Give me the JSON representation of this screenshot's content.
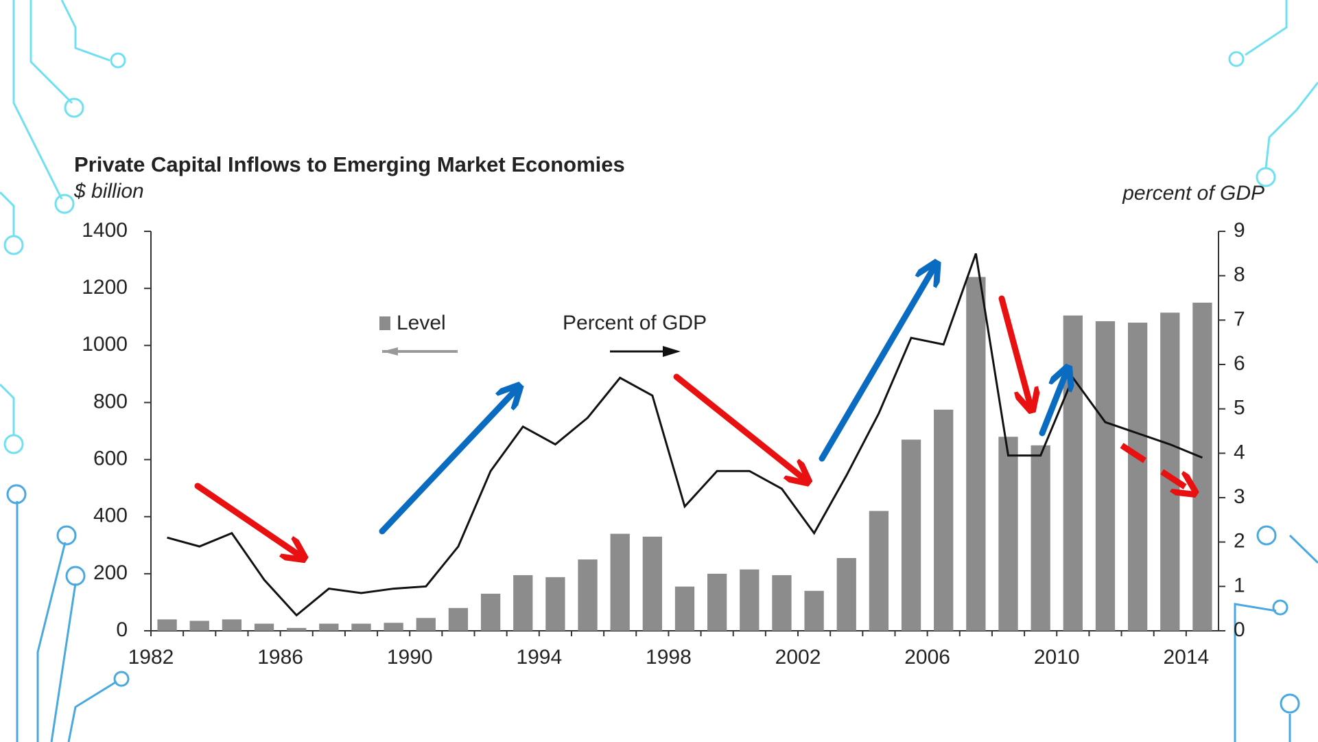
{
  "chart_data": {
    "type": "bar_line",
    "title": "Private Capital Inflows to Emerging Market Economies",
    "y_label": "$ billion",
    "y2_label": "percent of GDP",
    "categories": [
      "1982",
      null,
      null,
      null,
      "1986",
      null,
      null,
      null,
      "1990",
      null,
      null,
      null,
      "1994",
      null,
      null,
      null,
      "1998",
      null,
      null,
      null,
      "2002",
      null,
      null,
      null,
      "2006",
      null,
      null,
      null,
      "2010",
      null,
      null,
      null,
      "2014"
    ],
    "series": [
      {
        "name": "Level",
        "type": "bar",
        "color": "#8c8c8c",
        "axis": "y",
        "values": [
          40,
          35,
          40,
          25,
          10,
          25,
          25,
          28,
          45,
          80,
          130,
          195,
          188,
          250,
          340,
          330,
          155,
          200,
          215,
          195,
          140,
          255,
          420,
          670,
          775,
          1240,
          680,
          650,
          1105,
          1085,
          1080,
          1115,
          1150
        ]
      },
      {
        "name": "Percent of GDP",
        "type": "line",
        "color": "#111111",
        "axis": "y2",
        "values": [
          2.1,
          1.9,
          2.2,
          1.15,
          0.35,
          0.95,
          0.85,
          0.95,
          1.0,
          1.9,
          3.6,
          4.6,
          4.2,
          4.8,
          5.7,
          5.3,
          2.8,
          3.6,
          3.6,
          3.2,
          2.2,
          3.5,
          4.9,
          6.6,
          6.45,
          8.5,
          3.95,
          3.95,
          5.7,
          4.7,
          4.45,
          4.2,
          3.9
        ]
      }
    ],
    "ylim": [
      0,
      1400
    ],
    "yticks": [
      0,
      200,
      400,
      600,
      800,
      1000,
      1200,
      1400
    ],
    "y2lim": [
      0,
      9
    ],
    "y2ticks": [
      0,
      1,
      2,
      3,
      4,
      5,
      6,
      7,
      8,
      9
    ]
  }
}
